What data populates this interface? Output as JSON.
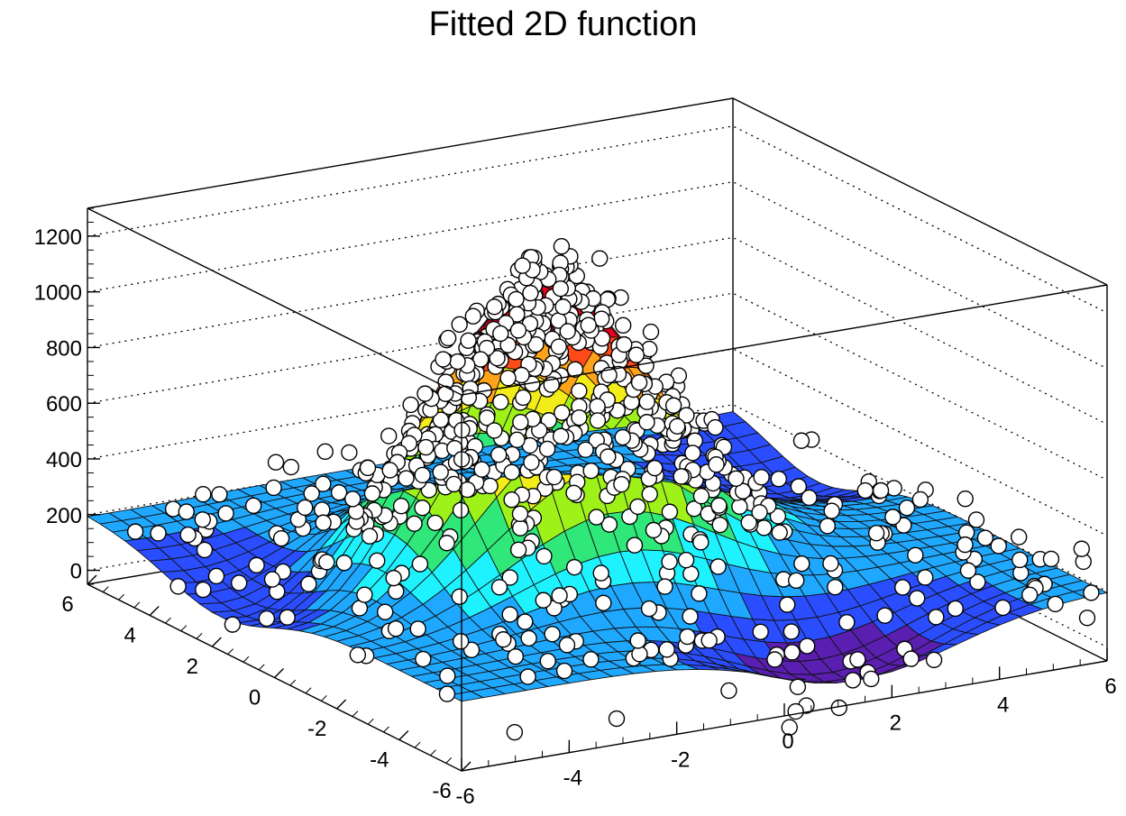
{
  "chart_data": {
    "type": "surface3d",
    "title": "Fitted 2D function",
    "xlabel": "",
    "ylabel": "",
    "zlabel": "",
    "xlim": [
      -6,
      6
    ],
    "ylim": [
      -6,
      6
    ],
    "zlim": [
      -50,
      1300
    ],
    "x_ticks": [
      "-6",
      "-4",
      "-2",
      "0",
      "2",
      "4",
      "6"
    ],
    "y_ticks": [
      "-6",
      "-4",
      "-2",
      "0",
      "2",
      "4",
      "6"
    ],
    "z_ticks": [
      "0",
      "200",
      "400",
      "600",
      "800",
      "1000",
      "1200"
    ],
    "z_grid": "dotted",
    "colormap": [
      "#5a1fb0",
      "#2a4dff",
      "#1fa8ff",
      "#1ff2ff",
      "#2fe879",
      "#9ef21a",
      "#f2ec1a",
      "#ffa31a",
      "#ff4a1a",
      "#e8001a"
    ],
    "surface_model": {
      "peak": {
        "amplitude": 1000,
        "x0": -1,
        "y0": 0,
        "sigma_x": 1.9,
        "sigma_y": 1.6
      },
      "baseline": 200,
      "dips": [
        {
          "amplitude": -220,
          "x0": 1.5,
          "y0": -5,
          "sigma_x": 1.7,
          "sigma_y": 1.3
        },
        {
          "amplitude": -170,
          "x0": -5.3,
          "y0": 1.5,
          "sigma_x": 1.3,
          "sigma_y": 1.8
        },
        {
          "amplitude": -140,
          "x0": 5.4,
          "y0": 3.3,
          "sigma_x": 1.3,
          "sigma_y": 1.5
        }
      ]
    },
    "grid_lines": 30,
    "series": [
      {
        "marker": "open-circle",
        "points_count": 700,
        "noise": 85
      }
    ]
  }
}
